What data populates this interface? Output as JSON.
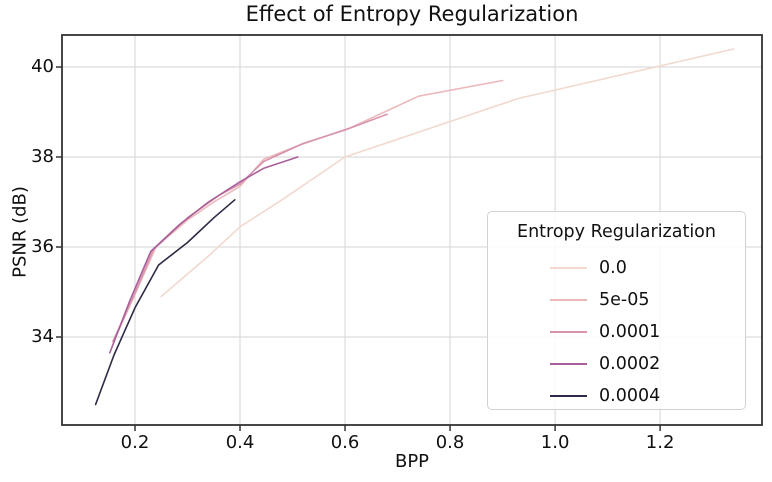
{
  "figure": {
    "background_color": "#ffffff",
    "text_color": "#111111",
    "spine_color": "#333333",
    "grid_color": "#dcdcdc"
  },
  "chart_data": {
    "type": "line",
    "title": "Effect of Entropy Regularization",
    "xlabel": "BPP",
    "ylabel": "PSNR (dB)",
    "xlim": [
      0.061,
      1.394
    ],
    "ylim": [
      32.045,
      40.711
    ],
    "xticks": [
      0.2,
      0.4,
      0.6,
      0.8,
      1.0,
      1.2
    ],
    "xtick_labels": [
      "0.2",
      "0.4",
      "0.6",
      "0.8",
      "1.0",
      "1.2"
    ],
    "yticks": [
      34,
      36,
      38,
      40
    ],
    "ytick_labels": [
      "34",
      "36",
      "38",
      "40"
    ],
    "grid": true,
    "legend": {
      "title": "Entropy Regularization",
      "position": "lower right inside"
    },
    "series": [
      {
        "name": "0.0",
        "color": "#f2d9d0",
        "points": [
          [
            0.25,
            34.9
          ],
          [
            0.34,
            35.8
          ],
          [
            0.4,
            36.45
          ],
          [
            0.48,
            37.05
          ],
          [
            0.6,
            38.0
          ],
          [
            0.93,
            39.3
          ],
          [
            1.34,
            40.4
          ]
        ]
      },
      {
        "name": "5e-05",
        "color": "#ecb8ba",
        "points": [
          [
            0.165,
            34.05
          ],
          [
            0.2,
            34.95
          ],
          [
            0.24,
            36.0
          ],
          [
            0.3,
            36.6
          ],
          [
            0.35,
            37.0
          ],
          [
            0.4,
            37.35
          ],
          [
            0.445,
            37.95
          ],
          [
            0.51,
            38.25
          ],
          [
            0.61,
            38.65
          ],
          [
            0.74,
            39.35
          ],
          [
            0.9,
            39.7
          ]
        ]
      },
      {
        "name": "0.0001",
        "color": "#d794ae",
        "points": [
          [
            0.158,
            33.9
          ],
          [
            0.195,
            34.85
          ],
          [
            0.235,
            35.95
          ],
          [
            0.3,
            36.65
          ],
          [
            0.36,
            37.15
          ],
          [
            0.4,
            37.4
          ],
          [
            0.445,
            37.9
          ],
          [
            0.52,
            38.3
          ],
          [
            0.6,
            38.6
          ],
          [
            0.68,
            38.95
          ]
        ]
      },
      {
        "name": "0.0002",
        "color": "#a8609a",
        "points": [
          [
            0.152,
            33.65
          ],
          [
            0.19,
            34.8
          ],
          [
            0.23,
            35.9
          ],
          [
            0.285,
            36.5
          ],
          [
            0.34,
            37.0
          ],
          [
            0.4,
            37.45
          ],
          [
            0.445,
            37.75
          ],
          [
            0.51,
            38.0
          ]
        ]
      },
      {
        "name": "0.0004",
        "color": "#2e2945",
        "points": [
          [
            0.125,
            32.5
          ],
          [
            0.16,
            33.6
          ],
          [
            0.2,
            34.65
          ],
          [
            0.245,
            35.6
          ],
          [
            0.3,
            36.1
          ],
          [
            0.35,
            36.65
          ],
          [
            0.39,
            37.05
          ]
        ]
      }
    ]
  }
}
